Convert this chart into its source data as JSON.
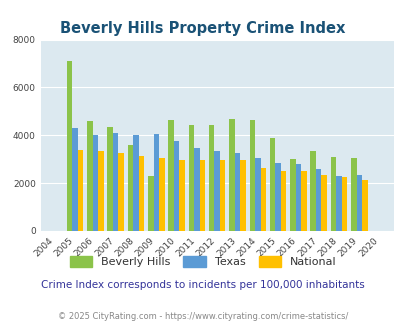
{
  "title": "Beverly Hills Property Crime Index",
  "years": [
    2004,
    2005,
    2006,
    2007,
    2008,
    2009,
    2010,
    2011,
    2012,
    2013,
    2014,
    2015,
    2016,
    2017,
    2018,
    2019,
    2020
  ],
  "beverly_hills": [
    null,
    7100,
    4600,
    4350,
    3600,
    2300,
    4650,
    4450,
    4450,
    4700,
    4650,
    3900,
    3000,
    3350,
    3100,
    3050,
    null
  ],
  "texas": [
    null,
    4300,
    4000,
    4100,
    4000,
    4050,
    3750,
    3450,
    3350,
    3250,
    3050,
    2850,
    2800,
    2600,
    2300,
    2350,
    null
  ],
  "national": [
    null,
    3400,
    3350,
    3250,
    3150,
    3050,
    2950,
    2950,
    2950,
    2950,
    2650,
    2500,
    2500,
    2350,
    2250,
    2150,
    null
  ],
  "bh_color": "#8bc34a",
  "texas_color": "#5b9bd5",
  "national_color": "#ffc000",
  "bg_color": "#dce9f0",
  "ylim": [
    0,
    8000
  ],
  "yticks": [
    0,
    2000,
    4000,
    6000,
    8000
  ],
  "subtitle": "Crime Index corresponds to incidents per 100,000 inhabitants",
  "footer": "© 2025 CityRating.com - https://www.cityrating.com/crime-statistics/",
  "legend_labels": [
    "Beverly Hills",
    "Texas",
    "National"
  ],
  "bar_width": 0.27
}
